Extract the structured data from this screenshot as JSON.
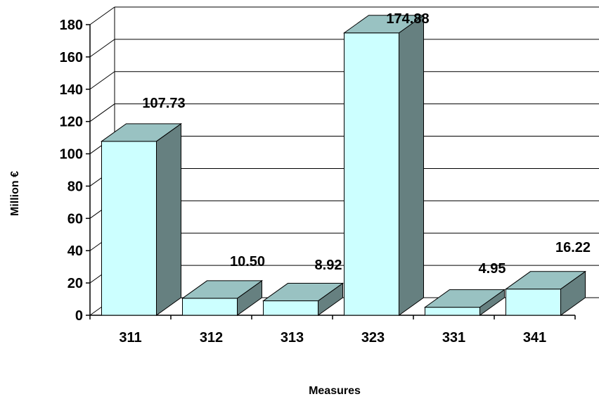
{
  "chart_data": {
    "type": "bar",
    "style": "3d-column",
    "categories": [
      "311",
      "312",
      "313",
      "323",
      "331",
      "341"
    ],
    "values": [
      107.73,
      10.5,
      8.92,
      174.88,
      4.95,
      16.22
    ],
    "value_labels": [
      "107.73",
      "10.50",
      "8.92",
      "174.88",
      "4.95",
      "16.22"
    ],
    "xlabel": "Measures",
    "ylabel": "Million €",
    "ylim": [
      0,
      180
    ],
    "yticks": [
      0,
      20,
      40,
      60,
      80,
      100,
      120,
      140,
      160,
      180
    ],
    "grid": true,
    "legend": "none",
    "colors": {
      "bar_front": "#ccffff",
      "bar_top": "#99c2c2",
      "bar_side": "#668080",
      "gridline": "#000000"
    }
  }
}
